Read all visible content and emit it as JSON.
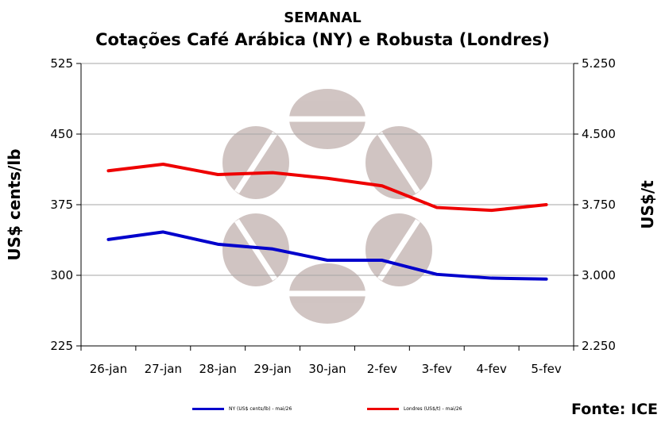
{
  "chart_data": {
    "type": "line",
    "title": "SEMANAL",
    "subtitle": "Cotações Café Arábica (NY) e Robusta (Londres)",
    "categories": [
      "26-jan",
      "27-jan",
      "28-jan",
      "29-jan",
      "30-jan",
      "2-fev",
      "3-fev",
      "4-fev",
      "5-fev"
    ],
    "y_left": {
      "label": "US$ cents/lb",
      "ylim": [
        225,
        525
      ],
      "ticks": [
        225,
        300,
        375,
        450,
        525
      ],
      "tick_labels": [
        "225",
        "300",
        "375",
        "450",
        "525"
      ]
    },
    "y_right": {
      "label": "US$/t",
      "ylim": [
        2250,
        5250
      ],
      "ticks": [
        2250,
        3000,
        3750,
        4500,
        5250
      ],
      "tick_labels": [
        "2.250",
        "3.000",
        "3.750",
        "4.500",
        "5.250"
      ]
    },
    "series": [
      {
        "name": "NY (US$ cents/lb) - mai/26",
        "axis": "left",
        "color": "#0000cc",
        "values": [
          338,
          346,
          333,
          328,
          316,
          316,
          301,
          297,
          296
        ]
      },
      {
        "name": "Londres (US$/t) - mai/26",
        "axis": "right",
        "color": "#ee0000",
        "values": [
          4110,
          4180,
          4070,
          4090,
          4030,
          3950,
          3720,
          3690,
          3750
        ]
      }
    ],
    "grid": "horizontal",
    "legend": "bottom",
    "source": "Fonte: ICE"
  }
}
